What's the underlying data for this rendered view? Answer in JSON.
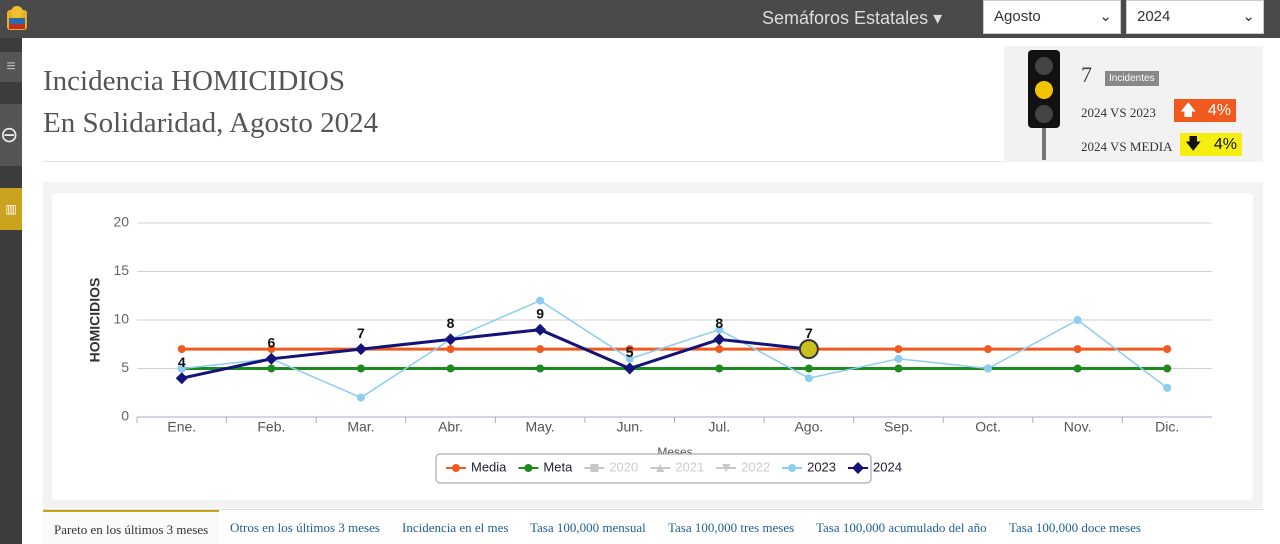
{
  "nav": {
    "title": "Semáforos Estatales",
    "month": "Agosto",
    "year": "2024"
  },
  "header": {
    "line1": "Incidencia HOMICIDIOS",
    "line2": "En Solidaridad, Agosto 2024"
  },
  "indicator": {
    "count": 7,
    "count_label": "Incidentes",
    "compare1": {
      "label": "2024 VS 2023",
      "value": "4%"
    },
    "compare2": {
      "label": "2024 VS MEDIA",
      "value": "4%"
    }
  },
  "chart_data": {
    "type": "line",
    "y_label": "HOMICIDIOS",
    "x_label": "Meses",
    "categories": [
      "Ene.",
      "Feb.",
      "Mar.",
      "Abr.",
      "May.",
      "Jun.",
      "Jul.",
      "Ago.",
      "Sep.",
      "Oct.",
      "Nov.",
      "Dic."
    ],
    "ylim": [
      0,
      20
    ],
    "yticks": [
      0,
      5,
      10,
      15,
      20
    ],
    "grid": true,
    "highlight_index": 7,
    "series": [
      {
        "name": "Media",
        "color": "#f05a1e",
        "marker": "circle",
        "values": [
          7,
          7,
          7,
          7,
          7,
          7,
          7,
          7,
          7,
          7,
          7,
          7
        ]
      },
      {
        "name": "Meta",
        "color": "#1e8a1e",
        "marker": "circle",
        "values": [
          5,
          5,
          5,
          5,
          5,
          5,
          5,
          5,
          5,
          5,
          5,
          5
        ]
      },
      {
        "name": "2020",
        "color": "#c8c8c8",
        "marker": "square",
        "hidden": true,
        "values": [
          null,
          null,
          null,
          null,
          null,
          null,
          null,
          null,
          null,
          null,
          null,
          null
        ]
      },
      {
        "name": "2021",
        "color": "#c8c8c8",
        "marker": "triangle",
        "hidden": true,
        "values": [
          null,
          null,
          null,
          null,
          null,
          null,
          null,
          null,
          null,
          null,
          null,
          null
        ]
      },
      {
        "name": "2022",
        "color": "#c8c8c8",
        "marker": "triangle-down",
        "hidden": true,
        "values": [
          null,
          null,
          null,
          null,
          null,
          null,
          null,
          null,
          null,
          null,
          null,
          null
        ]
      },
      {
        "name": "2023",
        "color": "#8ccdf0",
        "marker": "circle",
        "thin": true,
        "values": [
          5,
          6,
          2,
          8,
          12,
          6,
          9,
          4,
          6,
          5,
          10,
          3
        ]
      },
      {
        "name": "2024",
        "color": "#13137a",
        "marker": "diamond",
        "data_labels": true,
        "values": [
          4,
          6,
          7,
          8,
          9,
          5,
          8,
          7,
          null,
          null,
          null,
          null
        ]
      }
    ]
  },
  "tabs": [
    "Pareto en los últimos 3 meses",
    "Otros en los últimos 3 meses",
    "Incidencia en el mes",
    "Tasa 100,000 mensual",
    "Tasa 100,000 tres meses",
    "Tasa 100,000 acumulado del año",
    "Tasa 100,000 doce meses"
  ]
}
